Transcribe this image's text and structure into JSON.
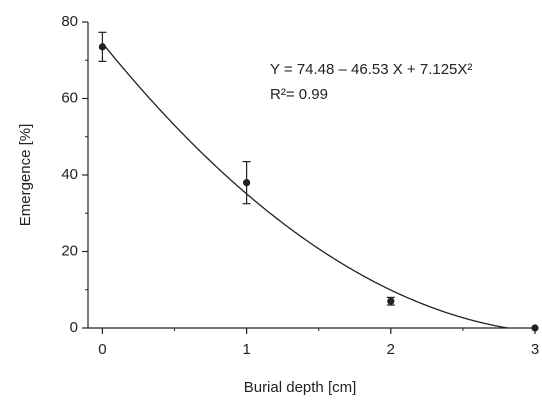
{
  "chart_data": {
    "type": "scatter",
    "x_label": "Burial depth [cm]",
    "y_label": "Emergence [%]",
    "x": [
      0,
      1,
      2,
      3
    ],
    "values": [
      73.5,
      38,
      7,
      0
    ],
    "errors": [
      3.8,
      5.5,
      1,
      0
    ],
    "color": "#222222",
    "xlim": [
      -0.1,
      3
    ],
    "xticks": [
      0,
      1,
      2,
      3
    ],
    "xminorticks": [
      0.5,
      1.5,
      2.5
    ],
    "ylim": [
      0,
      80
    ],
    "yticks": [
      0,
      20,
      40,
      60,
      80
    ],
    "yminorticks": [
      10,
      30,
      50,
      70
    ],
    "fit": {
      "coefficients": [
        74.48,
        -46.53,
        7.125
      ]
    },
    "annotations": [
      "Y = 74.48 – 46.53 X + 7.125X²",
      "R²= 0.99"
    ]
  }
}
